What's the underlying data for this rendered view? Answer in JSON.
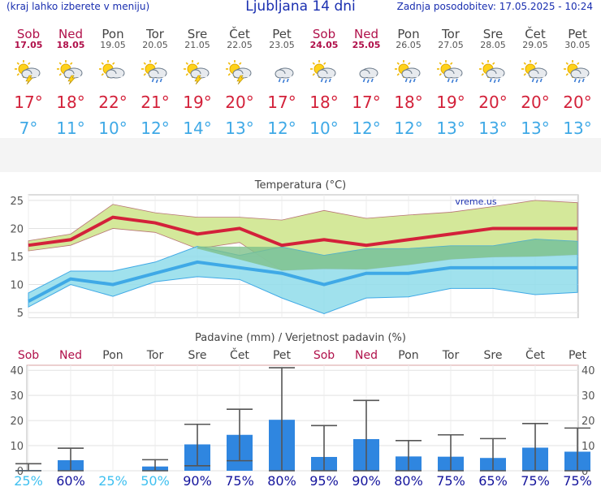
{
  "header": {
    "left_note": "(kraj lahko izberete v meniju)",
    "title": "Ljubljana 14 dni",
    "updated": "Zadnja posodobitev: 17.05.2025 - 10:24"
  },
  "days": [
    {
      "name": "Sob",
      "date": "17.05",
      "weekend": true,
      "icon": "sun-cloud-thunder-icon",
      "tmax": "17°",
      "tmin": "7°"
    },
    {
      "name": "Ned",
      "date": "18.05",
      "weekend": true,
      "icon": "sun-cloud-thunder-icon",
      "tmax": "18°",
      "tmin": "11°"
    },
    {
      "name": "Pon",
      "date": "19.05",
      "weekend": false,
      "icon": "partly-cloudy-icon",
      "tmax": "22°",
      "tmin": "10°"
    },
    {
      "name": "Tor",
      "date": "20.05",
      "weekend": false,
      "icon": "sun-cloud-rain-icon",
      "tmax": "21°",
      "tmin": "12°"
    },
    {
      "name": "Sre",
      "date": "21.05",
      "weekend": false,
      "icon": "sun-cloud-thunder-icon",
      "tmax": "19°",
      "tmin": "14°"
    },
    {
      "name": "Čet",
      "date": "22.05",
      "weekend": false,
      "icon": "sun-cloud-thunder-icon",
      "tmax": "20°",
      "tmin": "13°"
    },
    {
      "name": "Pet",
      "date": "23.05",
      "weekend": false,
      "icon": "cloud-rain-icon",
      "tmax": "17°",
      "tmin": "12°"
    },
    {
      "name": "Sob",
      "date": "24.05",
      "weekend": true,
      "icon": "sun-cloud-rain-icon",
      "tmax": "18°",
      "tmin": "10°"
    },
    {
      "name": "Ned",
      "date": "25.05",
      "weekend": true,
      "icon": "cloud-rain-icon",
      "tmax": "17°",
      "tmin": "12°"
    },
    {
      "name": "Pon",
      "date": "26.05",
      "weekend": false,
      "icon": "sun-cloud-rain-icon",
      "tmax": "18°",
      "tmin": "12°"
    },
    {
      "name": "Tor",
      "date": "27.05",
      "weekend": false,
      "icon": "sun-cloud-rain-icon",
      "tmax": "19°",
      "tmin": "13°"
    },
    {
      "name": "Sre",
      "date": "28.05",
      "weekend": false,
      "icon": "sun-cloud-rain-icon",
      "tmax": "20°",
      "tmin": "13°"
    },
    {
      "name": "Čet",
      "date": "29.05",
      "weekend": false,
      "icon": "sun-cloud-rain-icon",
      "tmax": "20°",
      "tmin": "13°"
    },
    {
      "name": "Pet",
      "date": "30.05",
      "weekend": false,
      "icon": "sun-cloud-rain-icon",
      "tmax": "20°",
      "tmin": "13°"
    }
  ],
  "colors": {
    "max_line": "#d3213a",
    "max_band": "#d4e89a",
    "min_line": "#3fa9e6",
    "min_band": "#8fdcea",
    "overlap": "#7ec18a",
    "bar": "#2f86e0",
    "weekend": "#b0104a",
    "prob_low": "#3fc0f0",
    "prob_high": "#14149c"
  },
  "chart_data": [
    {
      "type": "line",
      "title": "Temperatura (°C)",
      "watermark": "vreme.us",
      "ylim": [
        4,
        26
      ],
      "yticks": [
        5,
        10,
        15,
        20,
        25
      ],
      "series": [
        {
          "values": [
            17,
            18,
            22,
            21,
            19,
            20,
            17,
            18,
            17,
            18,
            19,
            20,
            20,
            20
          ],
          "upper": [
            17.8,
            19,
            24.3,
            22.8,
            22,
            22,
            21.5,
            23.2,
            21.8,
            22.4,
            22.9,
            23.9,
            25,
            24.6
          ],
          "lower": [
            16,
            17,
            20,
            19.3,
            16.4,
            17.5,
            12.5,
            12.8,
            12.7,
            13.5,
            14.5,
            14.9,
            15,
            15.3
          ]
        },
        {
          "values": [
            7,
            11,
            10,
            12,
            14,
            13,
            12,
            10,
            12,
            12,
            13,
            13,
            13,
            13
          ],
          "upper": [
            8.5,
            12.4,
            12.4,
            14,
            16.8,
            15.2,
            16.7,
            15.2,
            16.4,
            16.4,
            16.9,
            16.9,
            18.1,
            17.7
          ],
          "lower": [
            6,
            10,
            7.9,
            10.5,
            11.4,
            10.9,
            7.6,
            4.8,
            7.6,
            7.8,
            9.3,
            9.3,
            8.2,
            8.6
          ]
        }
      ]
    },
    {
      "type": "bar",
      "title": "Padavine (mm) / Verjetnost padavin (%)",
      "ylim": [
        0,
        42
      ],
      "yticks": [
        0,
        10,
        20,
        30,
        40
      ],
      "categories": [
        "Sob",
        "Ned",
        "Pon",
        "Tor",
        "Sre",
        "Čet",
        "Pet",
        "Sob",
        "Ned",
        "Pon",
        "Tor",
        "Sre",
        "Čet",
        "Pet"
      ],
      "values": [
        0.3,
        4.2,
        0,
        1.7,
        10.5,
        14.3,
        20.3,
        5.5,
        12.6,
        5.7,
        5.6,
        5.1,
        9.2,
        7.6
      ],
      "err_high": [
        2.8,
        9,
        0,
        4.4,
        18.5,
        24.5,
        41,
        18,
        28,
        12,
        14.3,
        12.8,
        18.8,
        17
      ],
      "err_low": [
        0,
        0,
        0,
        0,
        2,
        4,
        0,
        0,
        0,
        0,
        0,
        0,
        0,
        0
      ],
      "probability": [
        "25%",
        "60%",
        "25%",
        "50%",
        "90%",
        "75%",
        "80%",
        "95%",
        "90%",
        "80%",
        "75%",
        "65%",
        "75%",
        "75%"
      ]
    }
  ]
}
